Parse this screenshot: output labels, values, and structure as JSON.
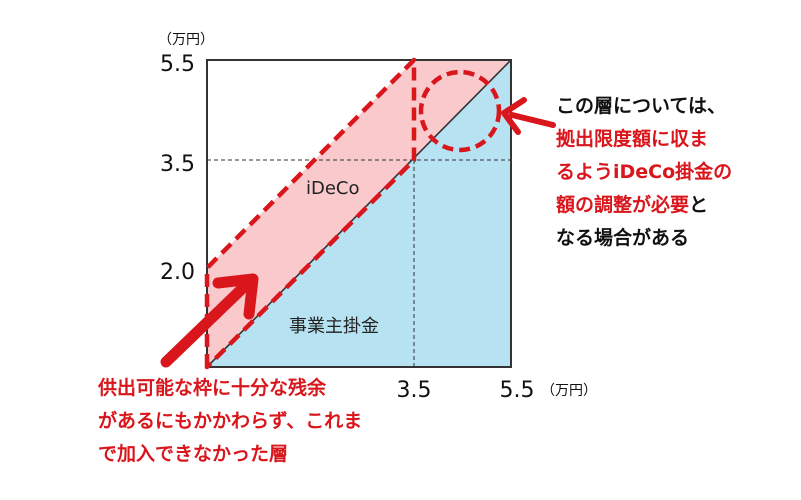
{
  "axis": {
    "unit_top": "（万円）",
    "unit_right": "（万円）",
    "y_ticks": [
      "5.5",
      "3.5",
      "2.0"
    ],
    "x_ticks": [
      "3.5",
      "5.5"
    ]
  },
  "regions": {
    "ideco": "iDeCo",
    "employer": "事業主掛金"
  },
  "colors": {
    "ideco_fill": "#f9c9cc",
    "employer_fill": "#b6e2f2",
    "accent_red": "#d9161c",
    "outline": "#333333"
  },
  "notes": {
    "right": {
      "l1": "この層については、",
      "l2": "拠出限度額に収ま",
      "l3a": "るよう",
      "l3b": "iDeCo掛金の",
      "l4a": "額の調整が必要",
      "l4b": "と",
      "l5": "なる場合がある"
    },
    "bottom": {
      "l1": "供出可能な枠に十分な残余",
      "l2": "があるにもかかわらず、これま",
      "l3": "で加入できなかった層"
    }
  }
}
